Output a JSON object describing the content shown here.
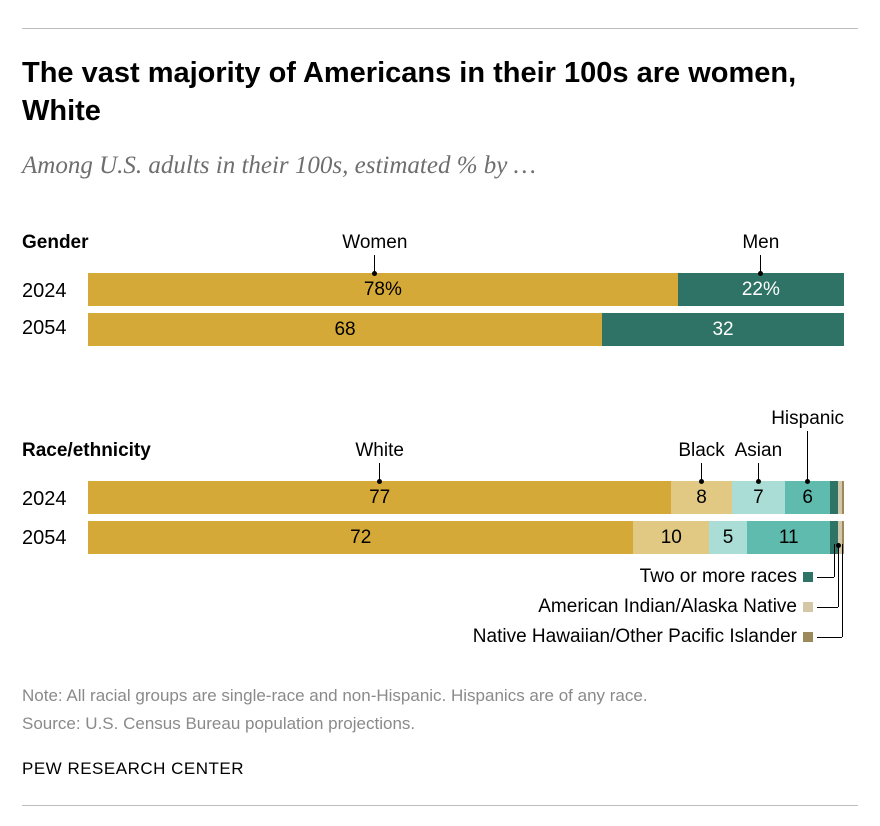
{
  "title": "The vast majority of Americans in their 100s are women, White",
  "subtitle": "Among U.S. adults in their 100s, estimated % by …",
  "colors": {
    "gold": "#d4a937",
    "dark_teal": "#2f7366",
    "tan": "#e2c983",
    "light_teal": "#a9ddd5",
    "mid_teal": "#5fbbad",
    "beige": "#d3c7a7",
    "olive": "#9d8a5c"
  },
  "chart_data": [
    {
      "type": "bar",
      "orientation": "horizontal",
      "stacked": true,
      "section_label": "Gender",
      "categories": [
        "2024",
        "2054"
      ],
      "series": [
        {
          "name": "Women",
          "values": [
            78,
            68
          ],
          "color": "#d4a937",
          "labels": [
            "78%",
            "68"
          ]
        },
        {
          "name": "Men",
          "values": [
            22,
            32
          ],
          "color": "#2f7366",
          "labels": [
            "22%",
            "32"
          ]
        }
      ]
    },
    {
      "type": "bar",
      "orientation": "horizontal",
      "stacked": true,
      "section_label": "Race/ethnicity",
      "categories": [
        "2024",
        "2054"
      ],
      "series": [
        {
          "name": "White",
          "values": [
            77,
            72
          ],
          "color": "#d4a937",
          "labels": [
            "77",
            "72"
          ]
        },
        {
          "name": "Black",
          "values": [
            8,
            10
          ],
          "color": "#e2c983",
          "labels": [
            "8",
            "10"
          ]
        },
        {
          "name": "Asian",
          "values": [
            7,
            5
          ],
          "color": "#a9ddd5",
          "labels": [
            "7",
            "5"
          ]
        },
        {
          "name": "Hispanic",
          "values": [
            6,
            11
          ],
          "color": "#5fbbad",
          "labels": [
            "6",
            "11"
          ]
        },
        {
          "name": "Two or more races",
          "values": [
            1,
            1
          ],
          "color": "#2f7366",
          "labels": [
            "",
            ""
          ]
        },
        {
          "name": "American Indian/Alaska Native",
          "values": [
            0.5,
            0.5
          ],
          "color": "#d3c7a7",
          "labels": [
            "",
            ""
          ]
        },
        {
          "name": "Native Hawaiian/Other Pacific Islander",
          "values": [
            0.3,
            0.3
          ],
          "color": "#9d8a5c",
          "labels": [
            "",
            ""
          ]
        }
      ]
    }
  ],
  "note": "Note: All racial groups are single-race and non-Hispanic. Hispanics are of any race.",
  "source": "Source: U.S. Census Bureau population projections.",
  "brand": "PEW RESEARCH CENTER"
}
